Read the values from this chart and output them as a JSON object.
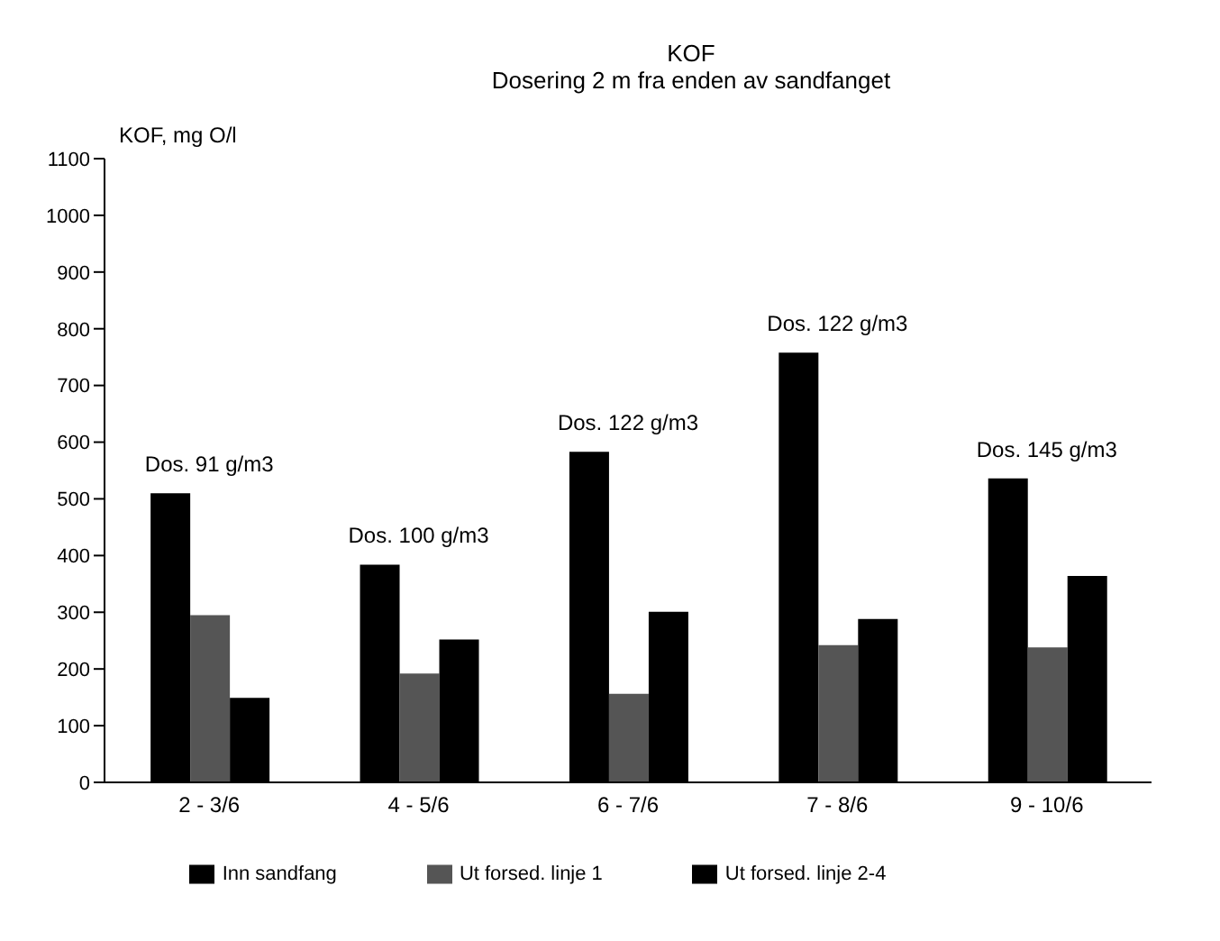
{
  "chart_data": {
    "type": "bar",
    "title": "KOF",
    "subtitle": "Dosering 2 m fra enden av sandfanget",
    "ylabel": "KOF, mg O/l",
    "categories": [
      "2 - 3/6",
      "4 - 5/6",
      "6 - 7/6",
      "7 - 8/6",
      "9 - 10/6"
    ],
    "series": [
      {
        "name": "Inn sandfang",
        "color": "#000000",
        "values": [
          510,
          384,
          583,
          758,
          536
        ]
      },
      {
        "name": "Ut forsed. linje 1",
        "color": "#555555",
        "values": [
          295,
          192,
          156,
          242,
          238
        ]
      },
      {
        "name": "Ut forsed. linje 2-4",
        "color": "#000000",
        "values": [
          149,
          252,
          301,
          288,
          364
        ]
      }
    ],
    "ylim": [
      0,
      1100
    ],
    "yticks": [
      0,
      100,
      200,
      300,
      400,
      500,
      600,
      700,
      800,
      900,
      1000,
      1100
    ],
    "annotations": [
      "Dos. 91 g/m3",
      "Dos. 100 g/m3",
      "Dos. 122 g/m3",
      "Dos. 122 g/m3",
      "Dos. 145 g/m3"
    ],
    "grid": false,
    "legend": "bottom"
  }
}
